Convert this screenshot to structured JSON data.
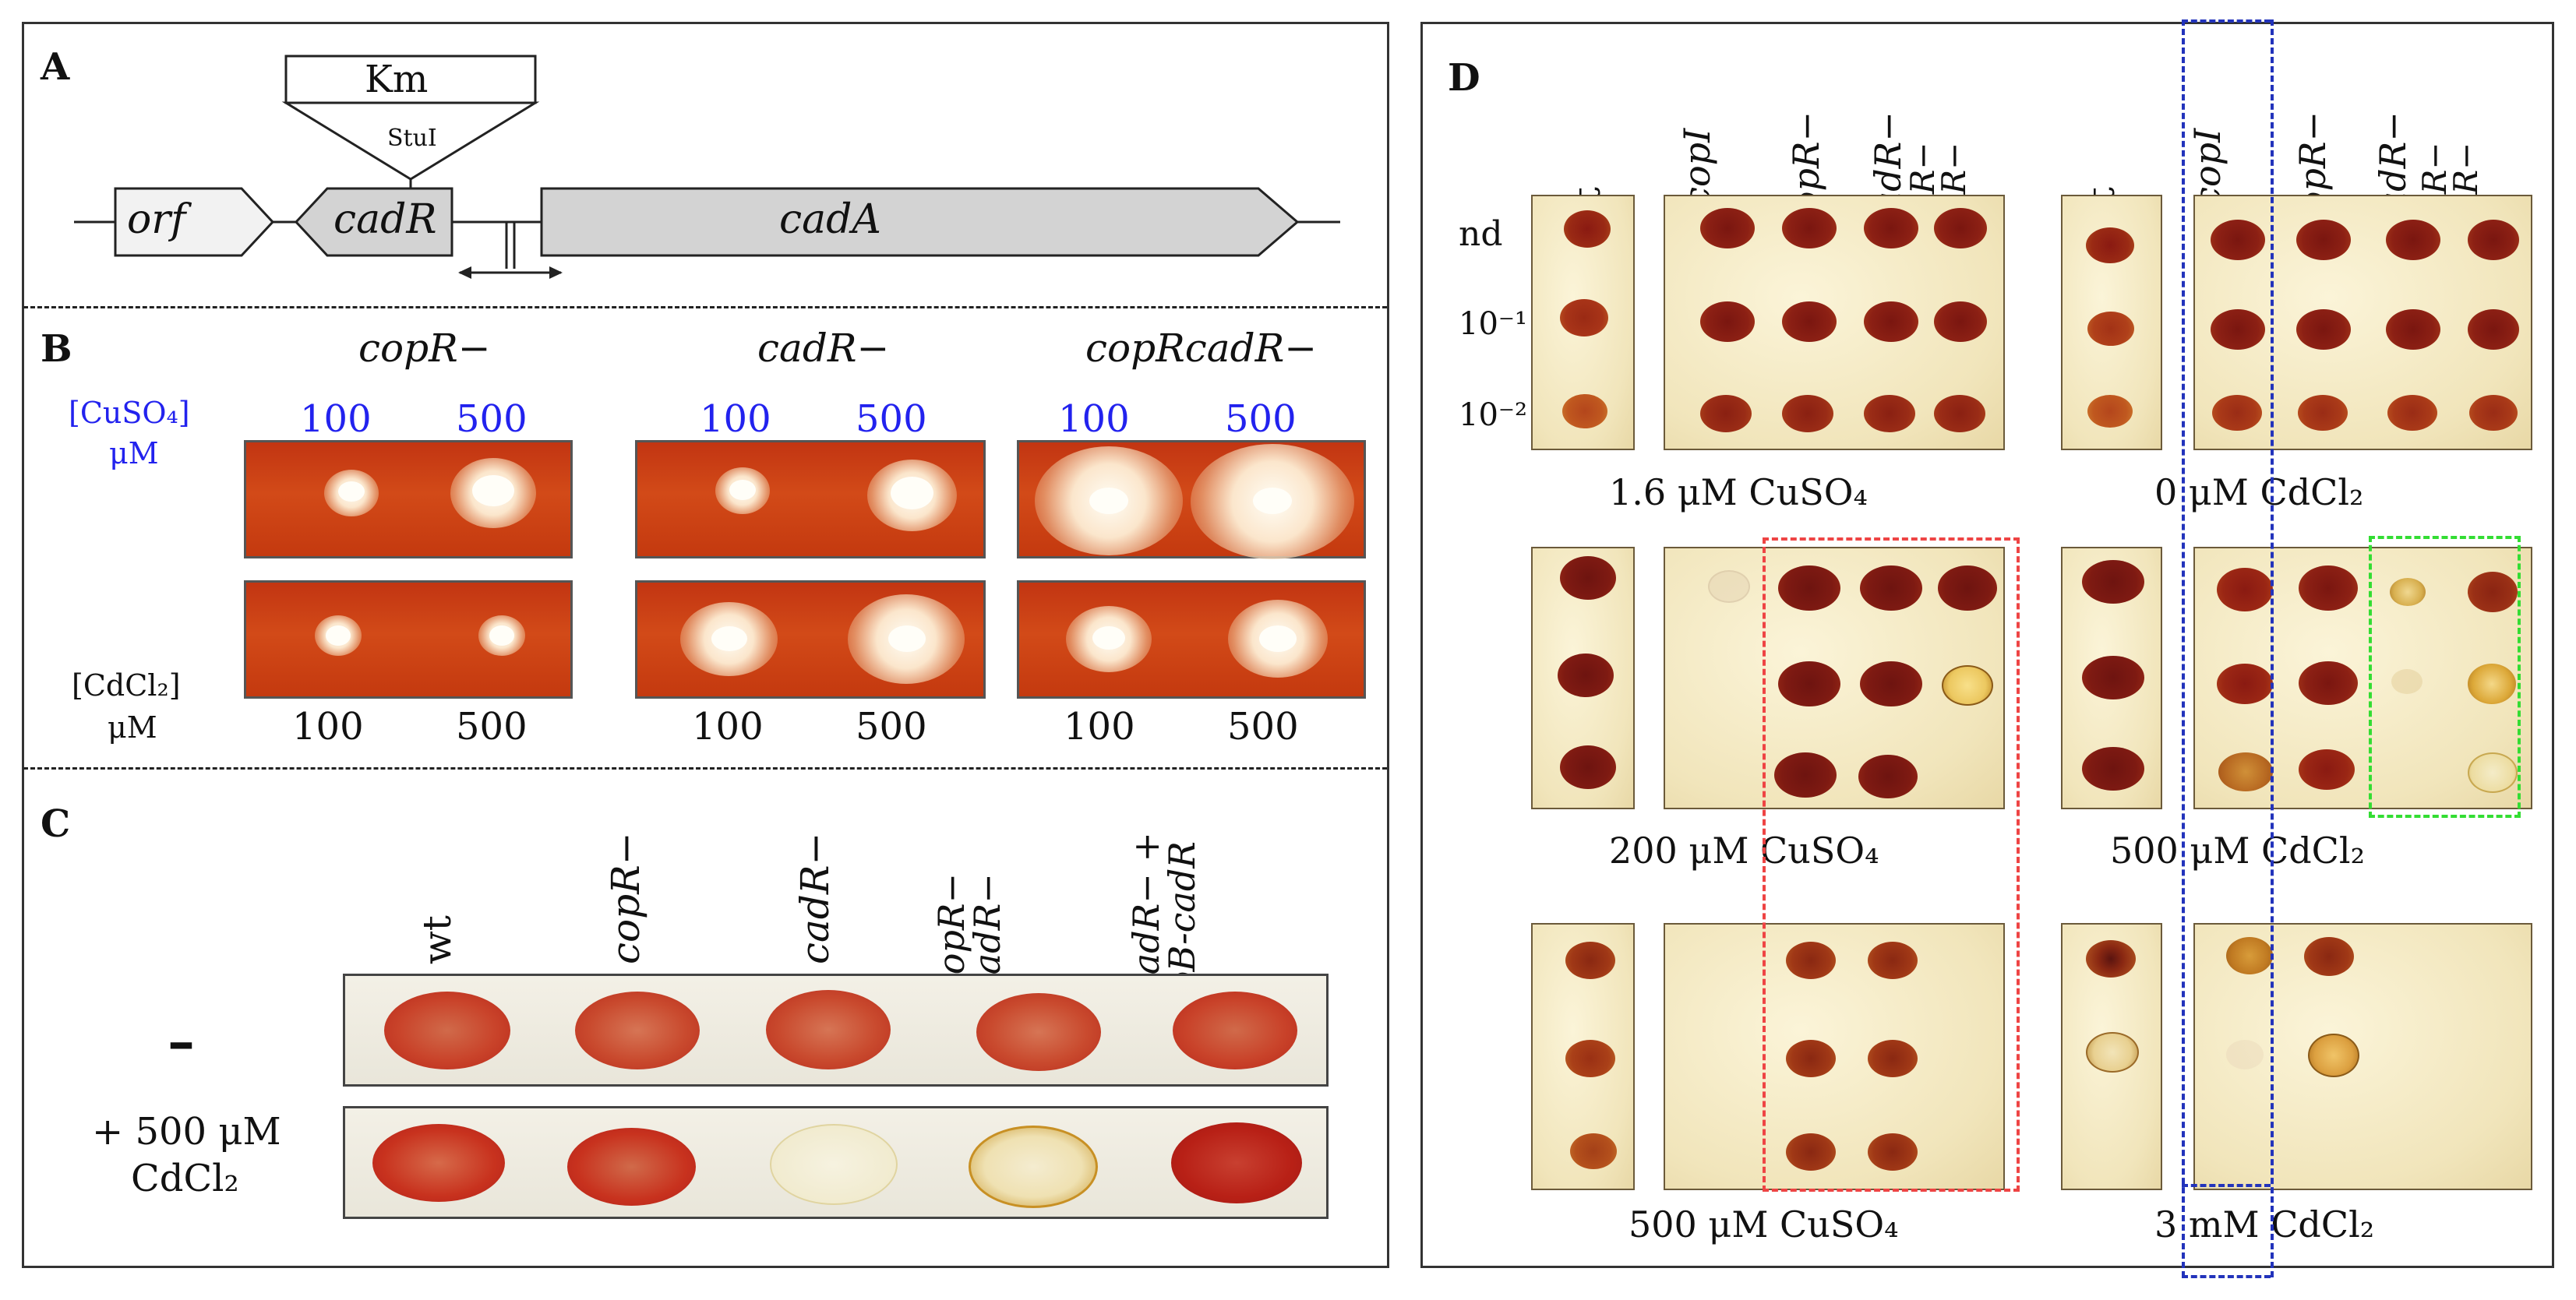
{
  "panel_A": {
    "letter": "A",
    "cassette_label": "Km",
    "site_label": "StuI",
    "genes": [
      "orf",
      "cadR",
      "cadA"
    ]
  },
  "panel_B": {
    "letter": "B",
    "strains": [
      "copR−",
      "cadR−",
      "copRcadR−"
    ],
    "cu_axis_label": "[CuSO₄]",
    "cu_axis_unit": "μM",
    "cd_axis_label": "[CdCl₂]",
    "cd_axis_unit": "μM",
    "concentrations": [
      "100",
      "500"
    ],
    "cu_label_color": "#2222ee"
  },
  "panel_C": {
    "letter": "C",
    "strains": [
      "wt",
      "copR−",
      "cadR−",
      "copR− cadR−",
      "cadR− + pB-cadR"
    ],
    "row_minus": "–",
    "row_plus_line1": "+ 500 μM",
    "row_plus_line2": "CdCl₂"
  },
  "panel_D": {
    "letter": "D",
    "strains": [
      "wt",
      "ΔcopI",
      "copR−",
      "cadR−",
      "copR− cadR−"
    ],
    "dilutions": [
      "nd",
      "10⁻¹",
      "10⁻²"
    ],
    "conditions": [
      "1.6 μM CuSO₄",
      "0 μM CdCl₂",
      "200 μM CuSO₄",
      "500 μM CdCl₂",
      "500 μM CuSO₄",
      "3 mM CdCl₂"
    ],
    "highlight_colors": {
      "blue": "#2233bb",
      "red": "#ee4444",
      "green": "#33dd33"
    }
  }
}
